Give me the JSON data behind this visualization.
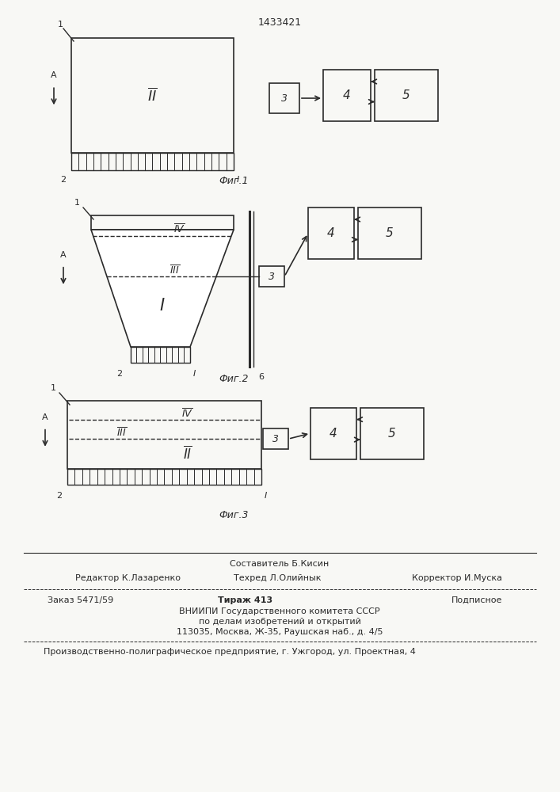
{
  "patent_number": "1433421",
  "fig1_label": "Фиг.1",
  "fig2_label": "Фиг.2",
  "fig3_label": "Фиг.3",
  "footer_sestavitel": "Составитель Б.Кисин",
  "footer_redaktor": "Редактор К.Лазаренко",
  "footer_tehred": "Техред Л.Олийнык",
  "footer_korrektor": "Корректор И.Муска",
  "footer_zakaz": "Заказ 5471/59",
  "footer_tirazh": "Тираж 413",
  "footer_podpisnoe": "Подписное",
  "footer_vnipi": "ВНИИПИ Государственного комитета СССР",
  "footer_po_delam": "по делам изобретений и открытий",
  "footer_address": "113035, Москва, Ж-35, Раушская наб., д. 4/5",
  "footer_proizv": "Производственно-полиграфическое предприятие, г. Ужгород, ул. Проектная, 4",
  "bg_color": "#f8f8f5",
  "line_color": "#2a2a2a"
}
